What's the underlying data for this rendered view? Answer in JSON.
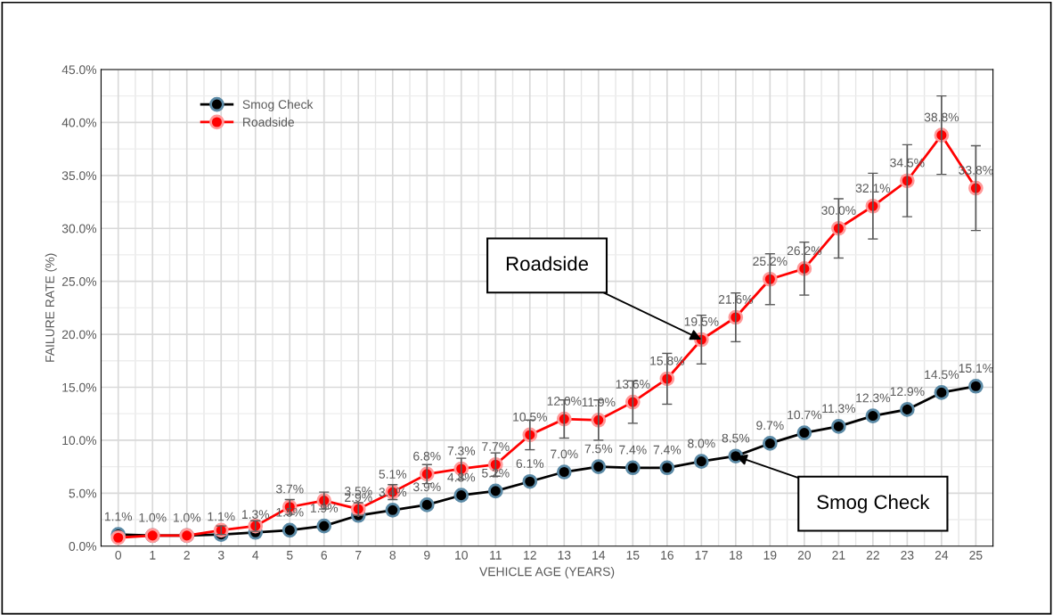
{
  "chart_data": {
    "type": "line",
    "xlabel": "VEHICLE AGE (YEARS)",
    "ylabel": "FAILURE RATE (%)",
    "categories": [
      "0",
      "1",
      "2",
      "3",
      "4",
      "5",
      "6",
      "7",
      "8",
      "9",
      "10",
      "11",
      "12",
      "13",
      "14",
      "15",
      "16",
      "17",
      "18",
      "19",
      "20",
      "21",
      "22",
      "23",
      "24",
      "25"
    ],
    "series": [
      {
        "name": "Smog Check",
        "color": "#000000",
        "values": [
          1.1,
          1.0,
          1.0,
          1.1,
          1.3,
          1.5,
          1.9,
          2.9,
          3.4,
          3.9,
          4.8,
          5.2,
          6.1,
          7.0,
          7.5,
          7.4,
          7.4,
          8.0,
          8.5,
          9.7,
          10.7,
          11.3,
          12.3,
          12.9,
          14.5,
          15.1
        ],
        "value_labels": [
          "1.1%",
          "1.0%",
          "1.0%",
          "1.1%",
          "1.3%",
          "1.5%",
          "1.9%",
          "2.9%",
          "3.4%",
          "3.9%",
          "4.8%",
          "5.2%",
          "6.1%",
          "7.0%",
          "7.5%",
          "7.4%",
          "7.4%",
          "8.0%",
          "8.5%",
          "9.7%",
          "10.7%",
          "11.3%",
          "12.3%",
          "12.9%",
          "14.5%",
          "15.1%"
        ]
      },
      {
        "name": "Roadside",
        "color": "#ff0000",
        "values": [
          0.8,
          1.0,
          1.0,
          1.5,
          1.9,
          3.7,
          4.3,
          3.5,
          5.1,
          6.8,
          7.3,
          7.7,
          10.5,
          12.0,
          11.9,
          13.6,
          15.8,
          19.5,
          21.6,
          25.2,
          26.2,
          30.0,
          32.1,
          34.5,
          38.8,
          33.8
        ],
        "errors": [
          null,
          null,
          null,
          0.4,
          0.5,
          0.7,
          0.8,
          0.6,
          0.7,
          0.9,
          1.0,
          1.1,
          1.4,
          1.8,
          1.9,
          2.0,
          2.4,
          2.3,
          2.3,
          2.4,
          2.5,
          2.8,
          3.1,
          3.4,
          3.7,
          4.0
        ],
        "value_labels": [
          null,
          null,
          null,
          null,
          null,
          "3.7%",
          null,
          "3.5%",
          "5.1%",
          "6.8%",
          "7.3%",
          "7.7%",
          "10.5%",
          "12.0%",
          "11.9%",
          "13.6%",
          "15.8%",
          "19.5%",
          "21.6%",
          "25.2%",
          "26.2%",
          "30.0%",
          "32.1%",
          "34.5%",
          "38.8%",
          "33.8%"
        ]
      }
    ],
    "ylim": [
      0,
      45
    ],
    "yticks": [
      {
        "value": 0,
        "label": "0.0%"
      },
      {
        "value": 5,
        "label": "5.0%"
      },
      {
        "value": 10,
        "label": "10.0%"
      },
      {
        "value": 15,
        "label": "15.0%"
      },
      {
        "value": 20,
        "label": "20.0%"
      },
      {
        "value": 25,
        "label": "25.0%"
      },
      {
        "value": 30,
        "label": "30.0%"
      },
      {
        "value": 35,
        "label": "35.0%"
      },
      {
        "value": 40,
        "label": "40.0%"
      },
      {
        "value": 45,
        "label": "45.0%"
      }
    ],
    "annotations": [
      {
        "text": "Roadside",
        "x": "17",
        "y": 19.5
      },
      {
        "text": "Smog Check",
        "x": "18",
        "y": 8.5
      }
    ],
    "grid": true,
    "legend": "top left",
    "marker": "circle",
    "line_style": "solid"
  }
}
